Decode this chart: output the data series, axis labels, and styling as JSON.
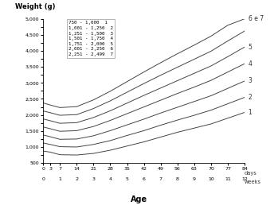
{
  "title": "Weight (g)",
  "xlabel": "Age",
  "x_days": [
    0,
    3,
    7,
    14,
    21,
    28,
    35,
    42,
    49,
    56,
    63,
    70,
    77,
    84
  ],
  "x_days_labels": [
    "0",
    "3",
    "7",
    "14",
    "21",
    "28",
    "35",
    "42",
    "49",
    "56",
    "63",
    "70",
    "77",
    "84"
  ],
  "x_weeks_pos": [
    0,
    7,
    14,
    21,
    28,
    35,
    42,
    49,
    56,
    63,
    70,
    77,
    84
  ],
  "x_weeks_labels": [
    "0",
    "1",
    "2",
    "3",
    "4",
    "5",
    "6",
    "7",
    "8",
    "9",
    "10",
    "11",
    "12"
  ],
  "xlim": [
    0,
    84
  ],
  "ylim": [
    500,
    5000
  ],
  "yticks": [
    500,
    750,
    1000,
    1250,
    1500,
    1750,
    2000,
    2250,
    2500,
    2750,
    3000,
    3250,
    3500,
    3750,
    4000,
    4250,
    4500,
    4750,
    5000
  ],
  "ytick_labels": [
    "500",
    "",
    "1,000",
    "",
    "1,500",
    "",
    "2,000",
    "",
    "2,500",
    "",
    "3,000",
    "",
    "3,500",
    "",
    "4,000",
    "",
    "4,500",
    "",
    "5,000"
  ],
  "line_color": "#444444",
  "curve_end_labels": [
    "1",
    "2",
    "3",
    "4",
    "5",
    "6 e 7"
  ],
  "curves": [
    [
      875,
      840,
      760,
      750,
      800,
      900,
      1030,
      1160,
      1310,
      1460,
      1590,
      1720,
      1900,
      2080
    ],
    [
      1125,
      1080,
      1010,
      1000,
      1080,
      1200,
      1360,
      1510,
      1680,
      1840,
      1990,
      2150,
      2350,
      2550
    ],
    [
      1375,
      1320,
      1240,
      1250,
      1350,
      1510,
      1690,
      1870,
      2060,
      2240,
      2420,
      2600,
      2830,
      3060
    ],
    [
      1625,
      1570,
      1490,
      1510,
      1640,
      1830,
      2040,
      2250,
      2460,
      2670,
      2870,
      3080,
      3340,
      3600
    ],
    [
      1875,
      1820,
      1740,
      1760,
      1920,
      2130,
      2370,
      2610,
      2840,
      3070,
      3300,
      3530,
      3820,
      4120
    ],
    [
      2125,
      2070,
      1990,
      2010,
      2200,
      2440,
      2710,
      2980,
      3240,
      3490,
      3740,
      3990,
      4310,
      4620
    ],
    [
      2375,
      2310,
      2230,
      2260,
      2470,
      2740,
      3040,
      3340,
      3630,
      3910,
      4180,
      4460,
      4800,
      5000
    ]
  ],
  "curve6_label_idx": 5,
  "curve67_label_idx": 6,
  "background_color": "#ffffff",
  "legend_ranges": [
    "750 - 1,000",
    "1,001 - 1,250",
    "1,251 - 1,500",
    "1,501 - 1,750",
    "1,751 - 2,000",
    "2,001 - 2,250",
    "2,251 - 2,499"
  ],
  "legend_nums": [
    "1",
    "2",
    "3",
    "4",
    "5",
    "6",
    "7"
  ]
}
